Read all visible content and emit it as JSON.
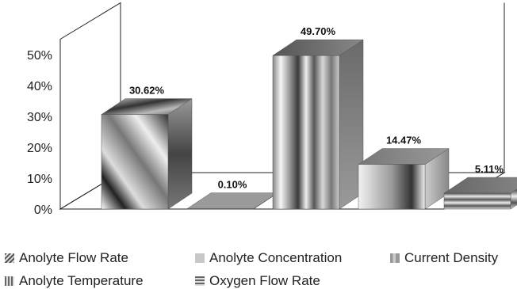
{
  "chart_data": {
    "type": "bar",
    "subtype": "3d-column",
    "ylim": [
      0,
      50
    ],
    "yticks": [
      "0%",
      "10%",
      "20%",
      "30%",
      "40%",
      "50%"
    ],
    "grid": false,
    "legend_position": "bottom",
    "series": [
      {
        "name": "Anolyte Flow Rate",
        "value": 30.62,
        "label": "30.62%"
      },
      {
        "name": "Anolyte Concentration",
        "value": 0.1,
        "label": "0.10%"
      },
      {
        "name": "Current Density",
        "value": 49.7,
        "label": "49.70%"
      },
      {
        "name": "Anolyte Temperature",
        "value": 14.47,
        "label": "14.47%"
      },
      {
        "name": "Oxygen Flow Rate",
        "value": 5.11,
        "label": "5.11%"
      }
    ]
  }
}
